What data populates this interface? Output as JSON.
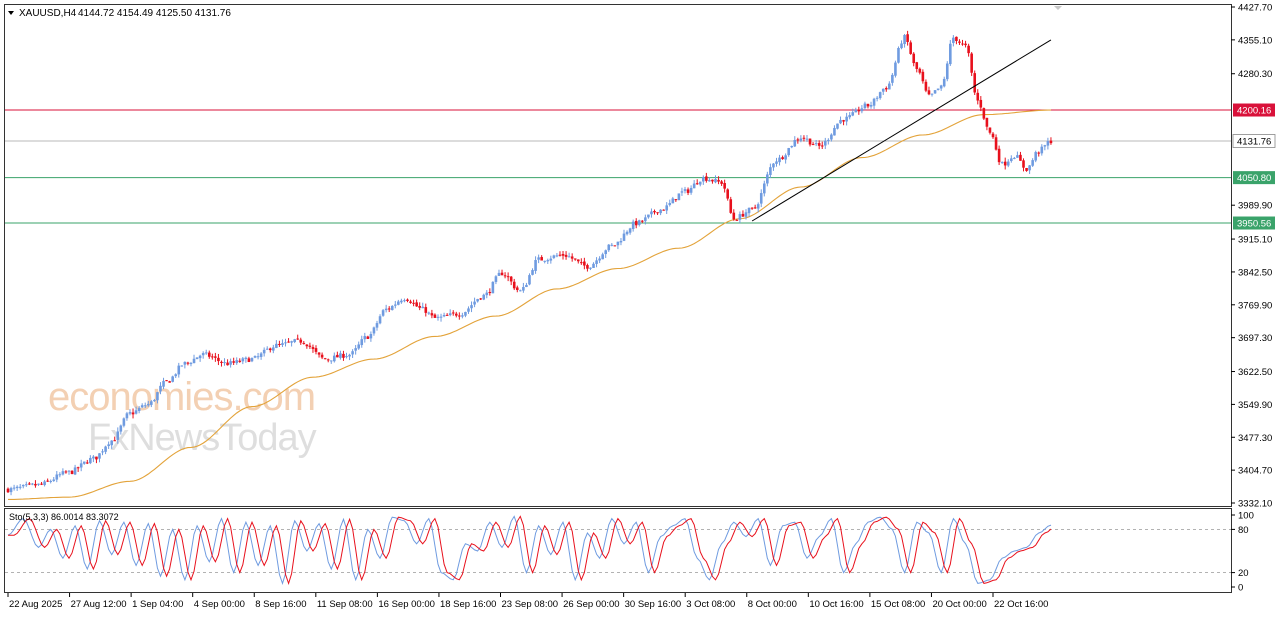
{
  "header": {
    "symbol": "XAUUSD,H4",
    "ohlc": "4144.72 4154.49 4125.50 4131.76"
  },
  "watermark": {
    "line1": "economies.com",
    "line2": "FxNewsToday"
  },
  "colors": {
    "up": "#6f9be0",
    "down": "#e8101c",
    "ma": "#e3a33a",
    "resistance": "#d9113a",
    "support": "#3aa36a",
    "current": "#b8b8b8",
    "trendline": "#000000",
    "stoch_main": "#6f9be0",
    "stoch_signal": "#e8101c"
  },
  "chart_data": [
    {
      "type": "candlestick",
      "symbol": "XAUUSD",
      "timeframe": "H4",
      "ylim": [
        3332.1,
        4427.7
      ],
      "y_ticks": [
        "4427.70",
        "4355.10",
        "4280.30",
        "4200.16",
        "4131.76",
        "4050.80",
        "3989.90",
        "3950.56",
        "3915.10",
        "3842.50",
        "3769.90",
        "3697.30",
        "3622.50",
        "3549.90",
        "3477.30",
        "3404.70",
        "3332.10"
      ],
      "x_ticks": [
        "22 Aug 2025",
        "27 Aug 12:00",
        "1 Sep 04:00",
        "4 Sep 00:00",
        "8 Sep 16:00",
        "11 Sep 08:00",
        "16 Sep 00:00",
        "18 Sep 16:00",
        "23 Sep 08:00",
        "26 Sep 00:00",
        "30 Sep 16:00",
        "3 Oct 08:00",
        "8 Oct 00:00",
        "10 Oct 16:00",
        "15 Oct 08:00",
        "20 Oct 00:00",
        "22 Oct 16:00"
      ],
      "horizontal_levels": [
        {
          "label": "4200.16",
          "value": 4200.16,
          "role": "resistance"
        },
        {
          "label": "4131.76",
          "value": 4131.76,
          "role": "current"
        },
        {
          "label": "4050.80",
          "value": 4050.8,
          "role": "support"
        },
        {
          "label": "3950.56",
          "value": 3950.56,
          "role": "support"
        }
      ],
      "close_anchors": [
        [
          0,
          3362
        ],
        [
          10,
          3372
        ],
        [
          20,
          3400
        ],
        [
          28,
          3430
        ],
        [
          34,
          3470
        ],
        [
          40,
          3530
        ],
        [
          46,
          3550
        ],
        [
          52,
          3600
        ],
        [
          58,
          3640
        ],
        [
          64,
          3660
        ],
        [
          72,
          3640
        ],
        [
          80,
          3650
        ],
        [
          88,
          3680
        ],
        [
          96,
          3690
        ],
        [
          104,
          3650
        ],
        [
          112,
          3660
        ],
        [
          118,
          3700
        ],
        [
          124,
          3760
        ],
        [
          130,
          3785
        ],
        [
          136,
          3760
        ],
        [
          140,
          3740
        ],
        [
          148,
          3750
        ],
        [
          156,
          3790
        ],
        [
          162,
          3840
        ],
        [
          168,
          3800
        ],
        [
          174,
          3870
        ],
        [
          182,
          3880
        ],
        [
          190,
          3855
        ],
        [
          198,
          3900
        ],
        [
          206,
          3950
        ],
        [
          214,
          3980
        ],
        [
          222,
          4020
        ],
        [
          228,
          4050
        ],
        [
          234,
          4040
        ],
        [
          238,
          3960
        ],
        [
          244,
          3980
        ],
        [
          252,
          4090
        ],
        [
          260,
          4140
        ],
        [
          266,
          4120
        ],
        [
          274,
          4180
        ],
        [
          282,
          4210
        ],
        [
          288,
          4250
        ],
        [
          294,
          4360
        ],
        [
          298,
          4290
        ],
        [
          302,
          4230
        ],
        [
          306,
          4250
        ],
        [
          310,
          4360
        ],
        [
          314,
          4340
        ],
        [
          318,
          4220
        ],
        [
          322,
          4150
        ],
        [
          326,
          4080
        ],
        [
          330,
          4100
        ],
        [
          334,
          4070
        ],
        [
          338,
          4110
        ],
        [
          342,
          4131.76
        ]
      ],
      "moving_average": {
        "color_key": "ma",
        "anchors": [
          [
            0,
            3340
          ],
          [
            20,
            3345
          ],
          [
            40,
            3380
          ],
          [
            60,
            3455
          ],
          [
            80,
            3545
          ],
          [
            100,
            3610
          ],
          [
            120,
            3650
          ],
          [
            140,
            3700
          ],
          [
            160,
            3745
          ],
          [
            180,
            3805
          ],
          [
            200,
            3850
          ],
          [
            220,
            3895
          ],
          [
            240,
            3960
          ],
          [
            260,
            4030
          ],
          [
            280,
            4095
          ],
          [
            300,
            4145
          ],
          [
            320,
            4190
          ],
          [
            342,
            4200
          ]
        ]
      },
      "trendline": {
        "from": [
          244,
          3955
        ],
        "to": [
          342,
          4355
        ]
      },
      "bar_count": 343
    },
    {
      "type": "line",
      "label": "Sto(5,3,3) 86.0014 83.3072",
      "indicator": "Stochastic",
      "ylim": [
        0,
        100
      ],
      "y_ticks": [
        "100",
        "80",
        "20",
        "0"
      ],
      "levels": [
        80,
        20
      ],
      "main_last": 86.0014,
      "signal_last": 83.3072,
      "main_anchors": [
        [
          0,
          72
        ],
        [
          5,
          95
        ],
        [
          10,
          55
        ],
        [
          14,
          80
        ],
        [
          18,
          40
        ],
        [
          22,
          85
        ],
        [
          26,
          25
        ],
        [
          30,
          92
        ],
        [
          34,
          45
        ],
        [
          38,
          90
        ],
        [
          42,
          30
        ],
        [
          46,
          88
        ],
        [
          50,
          15
        ],
        [
          54,
          80
        ],
        [
          58,
          10
        ],
        [
          62,
          85
        ],
        [
          66,
          35
        ],
        [
          70,
          95
        ],
        [
          74,
          20
        ],
        [
          78,
          90
        ],
        [
          82,
          30
        ],
        [
          86,
          85
        ],
        [
          90,
          5
        ],
        [
          94,
          92
        ],
        [
          98,
          50
        ],
        [
          102,
          88
        ],
        [
          106,
          25
        ],
        [
          110,
          94
        ],
        [
          114,
          10
        ],
        [
          118,
          80
        ],
        [
          122,
          40
        ],
        [
          126,
          97
        ],
        [
          130,
          92
        ],
        [
          134,
          60
        ],
        [
          138,
          95
        ],
        [
          142,
          20
        ],
        [
          146,
          10
        ],
        [
          150,
          60
        ],
        [
          154,
          50
        ],
        [
          158,
          90
        ],
        [
          162,
          55
        ],
        [
          166,
          98
        ],
        [
          170,
          20
        ],
        [
          174,
          85
        ],
        [
          178,
          45
        ],
        [
          182,
          90
        ],
        [
          186,
          10
        ],
        [
          190,
          75
        ],
        [
          194,
          40
        ],
        [
          198,
          95
        ],
        [
          202,
          60
        ],
        [
          206,
          90
        ],
        [
          210,
          20
        ],
        [
          214,
          70
        ],
        [
          218,
          85
        ],
        [
          222,
          95
        ],
        [
          226,
          40
        ],
        [
          230,
          10
        ],
        [
          234,
          60
        ],
        [
          238,
          90
        ],
        [
          242,
          70
        ],
        [
          246,
          95
        ],
        [
          250,
          30
        ],
        [
          254,
          85
        ],
        [
          258,
          90
        ],
        [
          262,
          40
        ],
        [
          266,
          70
        ],
        [
          270,
          95
        ],
        [
          274,
          20
        ],
        [
          278,
          60
        ],
        [
          282,
          90
        ],
        [
          286,
          97
        ],
        [
          290,
          80
        ],
        [
          294,
          20
        ],
        [
          298,
          90
        ],
        [
          302,
          75
        ],
        [
          306,
          20
        ],
        [
          310,
          95
        ],
        [
          314,
          60
        ],
        [
          318,
          5
        ],
        [
          322,
          10
        ],
        [
          326,
          40
        ],
        [
          330,
          50
        ],
        [
          334,
          55
        ],
        [
          338,
          75
        ],
        [
          342,
          86.0014
        ]
      ],
      "signal_lag": 2
    }
  ]
}
